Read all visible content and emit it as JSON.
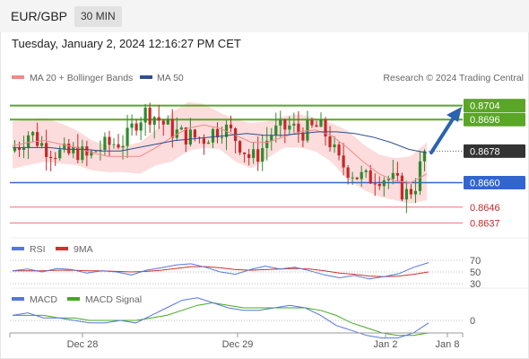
{
  "header": {
    "symbol": "EUR/GBP",
    "timeframe": "30 MIN",
    "datetime": "Tuesday, January 2, 2024 12:16:27 PM CET"
  },
  "legend": {
    "bollinger": "MA 20 + Bollinger Bands",
    "ma50": "MA 50",
    "credit": "Research © 2024 Trading Central",
    "rsi": "RSI",
    "rsi_ma": "9MA",
    "macd": "MACD",
    "macd_signal": "MACD Signal"
  },
  "colors": {
    "bullish": "#2e8b2e",
    "bearish": "#c62828",
    "bollinger_fill": "#fbd0d0",
    "ma20": "#f08a8a",
    "ma50": "#2f4f8f",
    "resistance": "#5aa626",
    "pivot": "#3366cc",
    "support": "#e57373",
    "current": "#333333",
    "arrow": "#2a63b0",
    "rsi": "#5577dd",
    "rsi_ma": "#d32f2f",
    "macd": "#5577dd",
    "macd_signal": "#44aa22"
  },
  "levels": {
    "r2": "0.8704",
    "r1": "0.8696",
    "current": "0.8678",
    "pivot": "0.8660",
    "s1": "0.8646",
    "s2": "0.8637"
  },
  "chart_data": [
    {
      "type": "candlestick",
      "title": "EUR/GBP 30 MIN",
      "x_ticks": [
        "Dec 28",
        "Dec 29",
        "Jan 2",
        "Jan 8"
      ],
      "ylim": [
        0.863,
        0.8712
      ],
      "series": [
        {
          "name": "MA 20 + Bollinger Bands"
        },
        {
          "name": "MA 50"
        }
      ],
      "close_path": [
        0.8678,
        0.8682,
        0.8689,
        0.8683,
        0.8679,
        0.8677,
        0.8676,
        0.8678,
        0.8674,
        0.8679,
        0.8681,
        0.8683,
        0.8684,
        0.8695,
        0.87,
        0.8698,
        0.8693,
        0.8689,
        0.8687,
        0.8686,
        0.8685,
        0.8689,
        0.8692,
        0.8688,
        0.8681,
        0.8673,
        0.8678,
        0.8688,
        0.869,
        0.8692,
        0.8689,
        0.869,
        0.8692,
        0.8686,
        0.8672,
        0.8668,
        0.8664,
        0.8662,
        0.8664,
        0.8663,
        0.866,
        0.8653,
        0.8658,
        0.8678
      ],
      "bollinger_upper_path": [
        0.8695,
        0.8696,
        0.8697,
        0.8694,
        0.869,
        0.8684,
        0.8681,
        0.8681,
        0.8683,
        0.869,
        0.87,
        0.8706,
        0.8705,
        0.87,
        0.8696,
        0.8694,
        0.8695,
        0.8698,
        0.8699,
        0.8697,
        0.8694,
        0.869,
        0.8682,
        0.8676,
        0.8674,
        0.8675,
        0.8683
      ],
      "bollinger_lower_path": [
        0.8668,
        0.867,
        0.8672,
        0.8671,
        0.867,
        0.8667,
        0.8666,
        0.8666,
        0.8665,
        0.867,
        0.8672,
        0.8678,
        0.868,
        0.8679,
        0.8672,
        0.8668,
        0.8674,
        0.868,
        0.868,
        0.8678,
        0.8672,
        0.8662,
        0.8656,
        0.8652,
        0.865,
        0.8648,
        0.865
      ],
      "ma20_path": [
        0.8681,
        0.8683,
        0.8684,
        0.8682,
        0.868,
        0.8677,
        0.8675,
        0.8675,
        0.8675,
        0.868,
        0.8686,
        0.8691,
        0.8693,
        0.8691,
        0.8687,
        0.8683,
        0.8683,
        0.8686,
        0.8689,
        0.869,
        0.8687,
        0.868,
        0.8672,
        0.8665,
        0.8661,
        0.866,
        0.8665
      ],
      "ma50_path": [
        0.868,
        0.868,
        0.868,
        0.8679,
        0.8679,
        0.8678,
        0.8678,
        0.868,
        0.8682,
        0.8684,
        0.8685,
        0.8686,
        0.8687,
        0.8688,
        0.8687,
        0.8687,
        0.8688,
        0.8689,
        0.8689,
        0.8688,
        0.8686,
        0.8683,
        0.8679,
        0.8677
      ]
    },
    {
      "type": "line",
      "title": "RSI",
      "y_ticks": [
        70,
        50,
        30
      ],
      "ylim": [
        0,
        100
      ],
      "series": [
        {
          "name": "RSI",
          "values": [
            52,
            55,
            50,
            56,
            54,
            48,
            52,
            50,
            45,
            53,
            57,
            62,
            64,
            58,
            50,
            46,
            54,
            60,
            55,
            58,
            52,
            45,
            40,
            44,
            38,
            42,
            47,
            58,
            66
          ]
        },
        {
          "name": "9MA",
          "values": [
            52,
            52,
            52,
            53,
            53,
            52,
            52,
            51,
            50,
            51,
            53,
            56,
            59,
            59,
            57,
            54,
            53,
            54,
            55,
            56,
            55,
            52,
            48,
            46,
            43,
            42,
            43,
            46,
            50
          ]
        }
      ]
    },
    {
      "type": "line",
      "title": "MACD",
      "y_ticks": [
        0
      ],
      "series": [
        {
          "name": "MACD",
          "values": [
            0.0002,
            0.0003,
            0.0001,
            0.0001,
            0.0,
            -0.0001,
            -0.0001,
            0.0,
            -0.0001,
            0.0002,
            0.0005,
            0.0008,
            0.0009,
            0.0007,
            0.0005,
            0.0004,
            0.0004,
            0.0005,
            0.0006,
            0.0005,
            0.0002,
            -0.0002,
            -0.0004,
            -0.0006,
            -0.0007,
            -0.0007,
            -0.0005,
            -0.0001
          ]
        },
        {
          "name": "MACD Signal",
          "values": [
            0.0002,
            0.0002,
            0.0002,
            0.0001,
            0.0001,
            0.0,
            0.0,
            0.0,
            0.0,
            0.0001,
            0.0002,
            0.0004,
            0.0006,
            0.0007,
            0.0006,
            0.0005,
            0.0005,
            0.0005,
            0.0005,
            0.0005,
            0.0004,
            0.0002,
            -0.0001,
            -0.0003,
            -0.0005,
            -0.0006,
            -0.0006,
            -0.0005
          ]
        }
      ]
    }
  ]
}
